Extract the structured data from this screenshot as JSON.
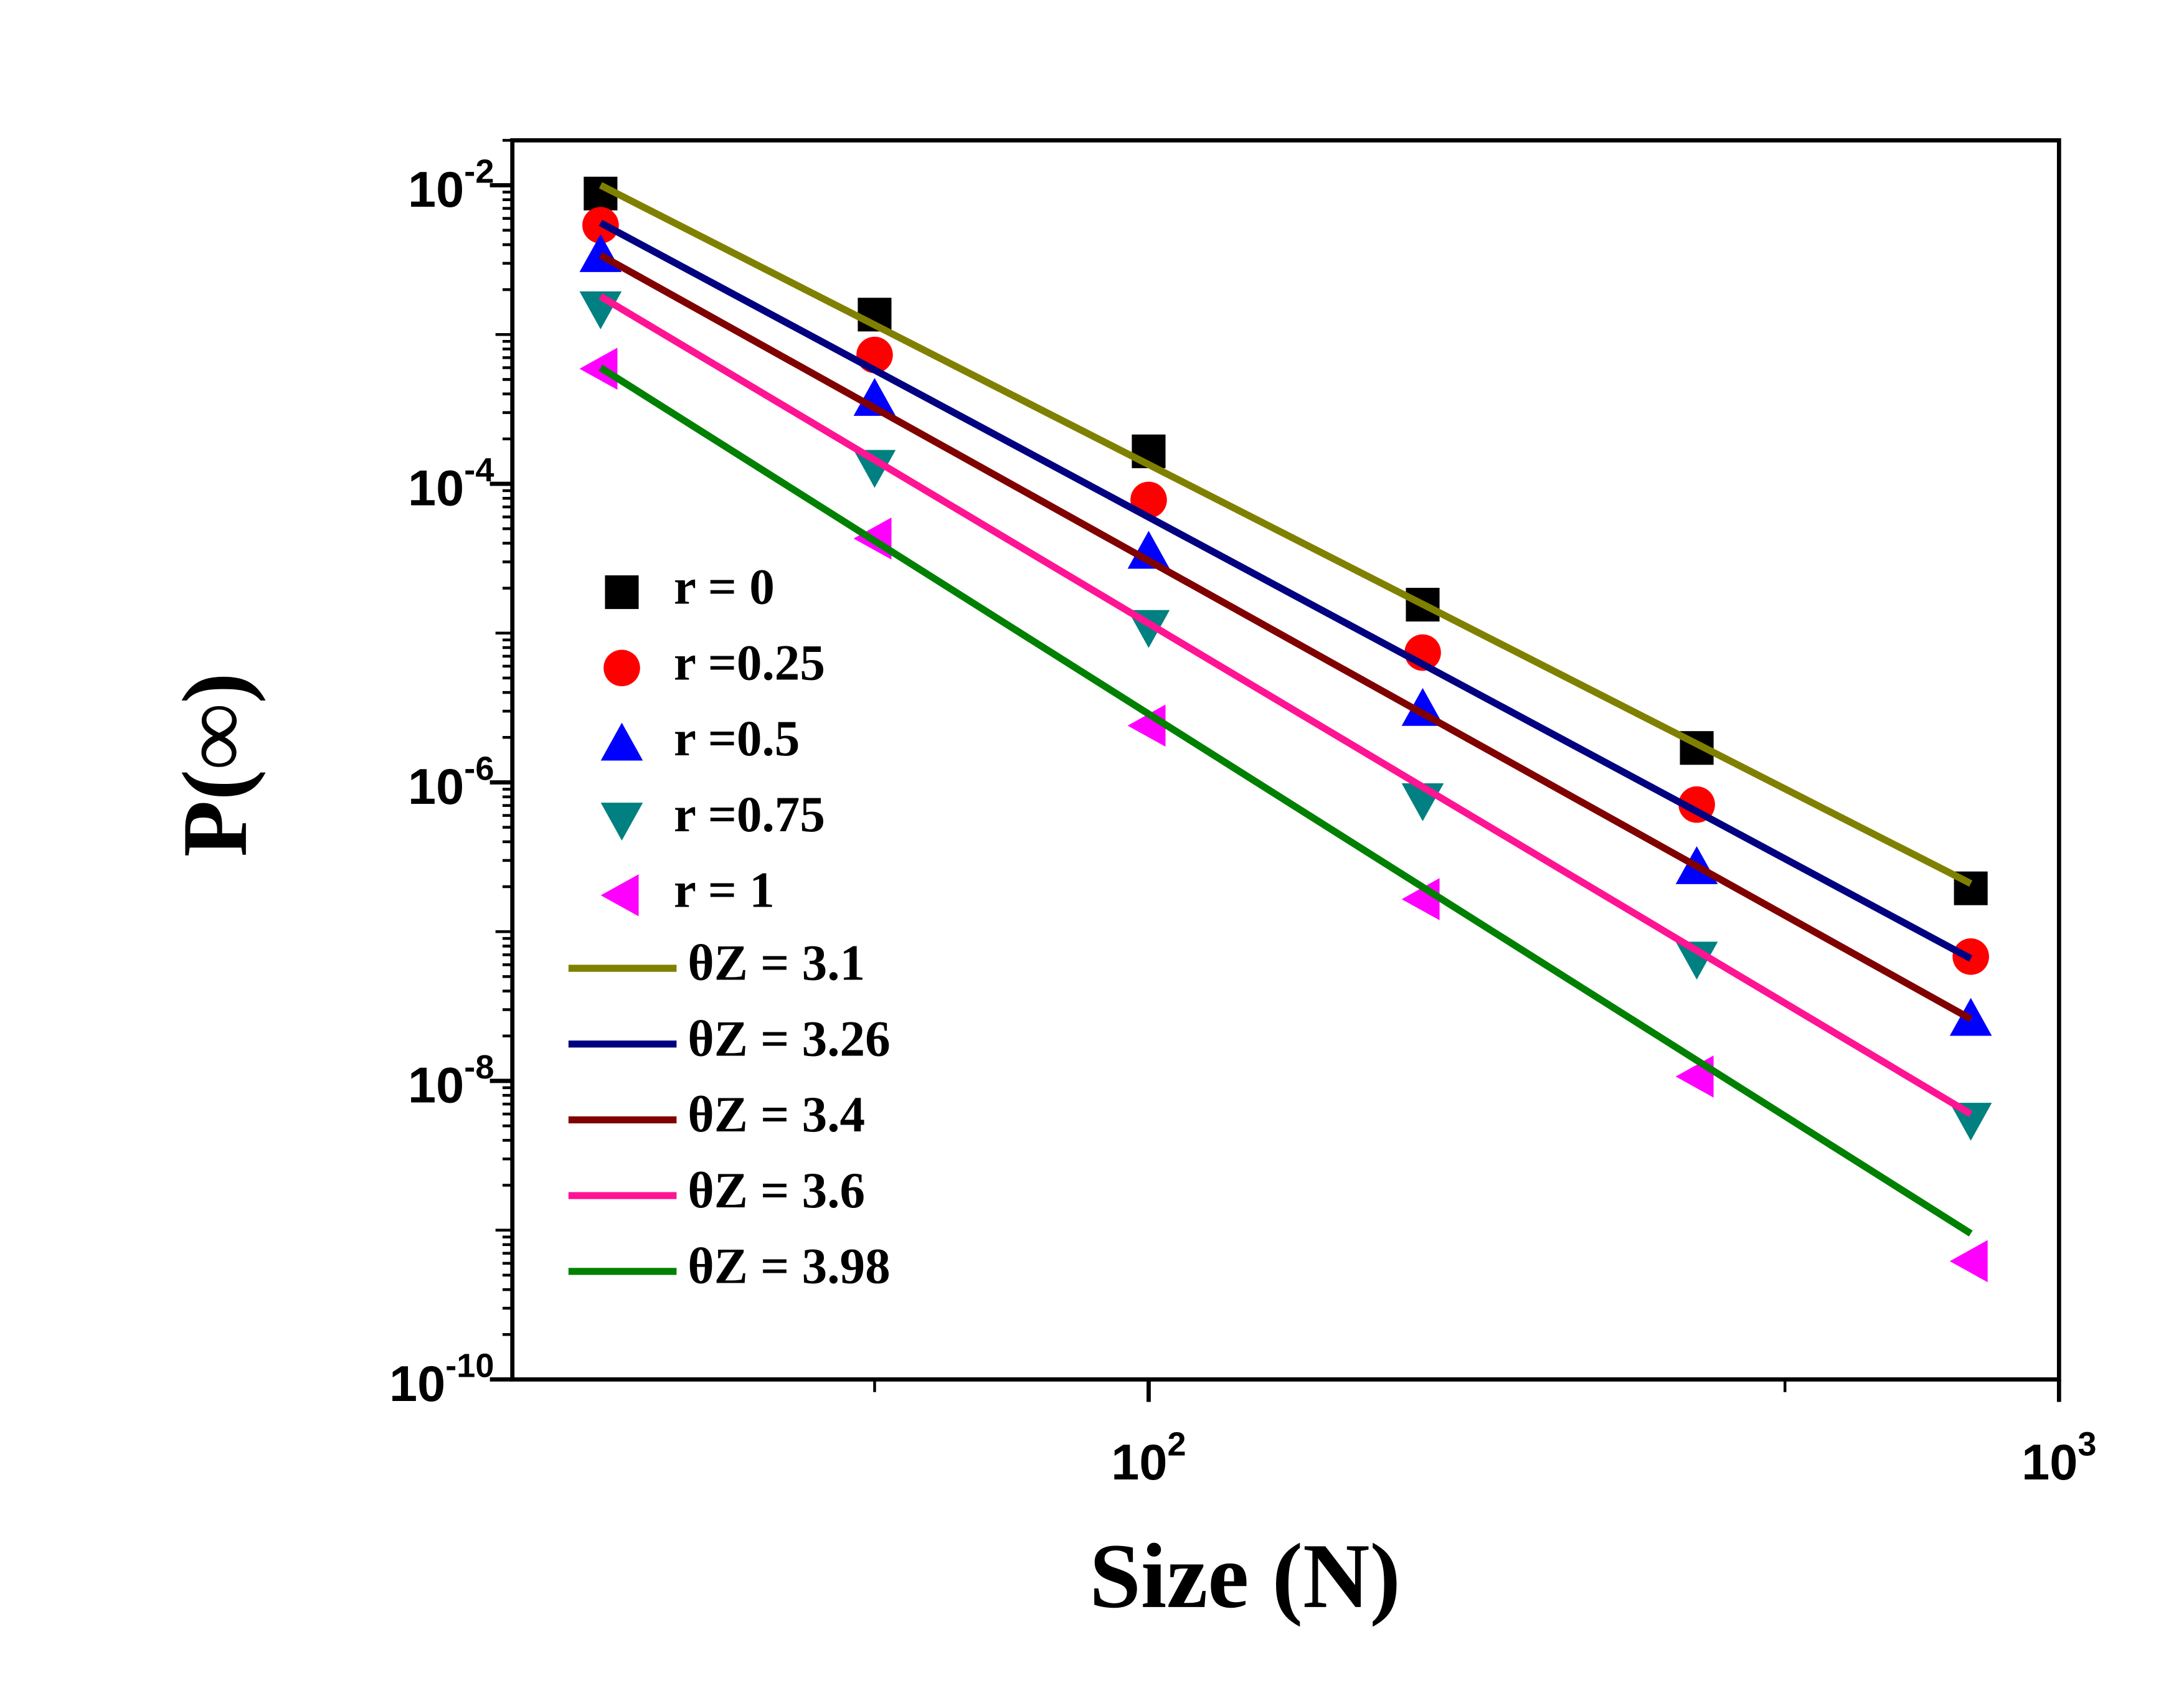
{
  "chart_data": {
    "type": "scatter",
    "x_label": "Size (N)",
    "y_label": "P(∞)",
    "x_log": true,
    "y_log": true,
    "xlim": [
      20,
      1000
    ],
    "ylim": [
      1e-10,
      0.02
    ],
    "xticks": [
      {
        "value": 100,
        "label": "102"
      },
      {
        "value": 1000,
        "label": "103"
      }
    ],
    "yticks": [
      {
        "value": 1e-10,
        "label": "10-10"
      },
      {
        "value": 1e-08,
        "label": "10-8"
      },
      {
        "value": 1e-06,
        "label": "10-6"
      },
      {
        "value": 0.0001,
        "label": "10-4"
      },
      {
        "value": 0.01,
        "label": "10-2"
      }
    ],
    "x": [
      25,
      50,
      100,
      200,
      400,
      800
    ],
    "series": [
      {
        "name": "r = 0",
        "color": "#000000",
        "marker": "square",
        "values": [
          0.0088,
          0.00136,
          0.000165,
          1.55e-05,
          1.7e-06,
          1.95e-07
        ]
      },
      {
        "name": "r =0.25",
        "color": "#ff0000",
        "marker": "circle",
        "values": [
          0.0054,
          0.00073,
          7.8e-05,
          7.4e-06,
          7.1e-07,
          6.8e-08
        ]
      },
      {
        "name": "r =0.5",
        "color": "#0000ff",
        "marker": "triangle-up",
        "values": [
          0.0034,
          0.00037,
          3.5e-05,
          3.1e-06,
          2.7e-07,
          2.6e-08
        ]
      },
      {
        "name": "r =0.75",
        "color": "#008080",
        "marker": "triangle-down",
        "values": [
          0.0015,
          0.00013,
          1.1e-05,
          7.6e-07,
          6.6e-08,
          5.5e-09
        ]
      },
      {
        "name": "r = 1",
        "color": "#ff00ff",
        "marker": "triangle-left",
        "values": [
          0.00059,
          4.3e-05,
          2.4e-06,
          1.65e-07,
          1.07e-08,
          6.2e-10
        ]
      },
      {
        "name": "θZ = 3.1",
        "color": "#808000",
        "x": [
          25,
          800
        ],
        "values": [
          0.01,
          2.1e-07
        ]
      },
      {
        "name": "θZ = 3.26",
        "color": "#000080",
        "x": [
          25,
          800
        ],
        "values": [
          0.0056,
          6.6e-08
        ]
      },
      {
        "name": "θZ = 3.4",
        "color": "#800000",
        "x": [
          25,
          800
        ],
        "values": [
          0.0034,
          2.6e-08
        ]
      },
      {
        "name": "θZ = 3.6",
        "color": "#ff1493",
        "x": [
          25,
          800
        ],
        "values": [
          0.0018,
          6e-09
        ]
      },
      {
        "name": "θZ = 3.98",
        "color": "#008000",
        "x": [
          25,
          800
        ],
        "values": [
          0.0006,
          9.5e-10
        ]
      }
    ]
  }
}
